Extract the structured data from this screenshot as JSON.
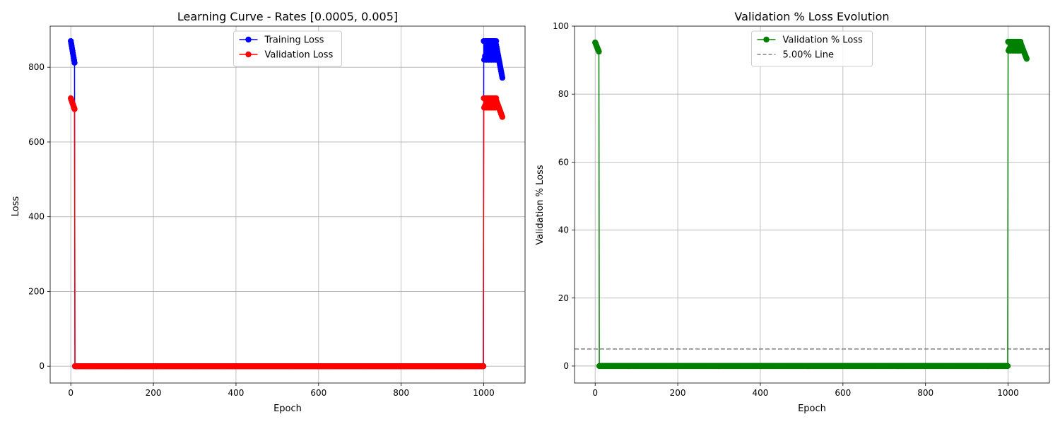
{
  "chart_data": [
    {
      "type": "line",
      "title": "Learning Curve - Rates [0.0005, 0.005]",
      "xlabel": "Epoch",
      "ylabel": "Loss",
      "xlim": [
        -50,
        1100
      ],
      "ylim": [
        -45,
        910
      ],
      "xticks": [
        0,
        200,
        400,
        600,
        800,
        1000
      ],
      "yticks": [
        0,
        200,
        400,
        600,
        800
      ],
      "grid": true,
      "legend_position": "top-center",
      "series": [
        {
          "name": "Training Loss",
          "color": "#0000ff",
          "segments": [
            {
              "x_start": 0,
              "x_end": 9,
              "y_start": 870,
              "y_end": 812
            },
            {
              "x_start": 10,
              "x_end": 999,
              "constant": 0
            },
            {
              "x_start": 1000,
              "x_end": 1030,
              "y_min": 820,
              "y_max": 870,
              "pattern": "oscillating"
            },
            {
              "x_start": 1030,
              "x_end": 1045,
              "y_start": 860,
              "y_end": 772
            }
          ]
        },
        {
          "name": "Validation Loss",
          "color": "#ff0000",
          "segments": [
            {
              "x_start": 0,
              "x_end": 9,
              "y_start": 717,
              "y_end": 688
            },
            {
              "x_start": 10,
              "x_end": 999,
              "constant": 0
            },
            {
              "x_start": 1000,
              "x_end": 1030,
              "y_min": 692,
              "y_max": 717,
              "pattern": "oscillating"
            },
            {
              "x_start": 1030,
              "x_end": 1045,
              "y_start": 712,
              "y_end": 667
            }
          ]
        }
      ]
    },
    {
      "type": "line",
      "title": "Validation % Loss Evolution",
      "xlabel": "Epoch",
      "ylabel": "Validation % Loss",
      "xlim": [
        -50,
        1100
      ],
      "ylim": [
        -5,
        100
      ],
      "xticks": [
        0,
        200,
        400,
        600,
        800,
        1000
      ],
      "yticks": [
        0,
        20,
        40,
        60,
        80,
        100
      ],
      "grid": true,
      "legend_position": "top-center",
      "series": [
        {
          "name": "Validation % Loss",
          "color": "#008000",
          "segments": [
            {
              "x_start": 0,
              "x_end": 9,
              "y_start": 95.2,
              "y_end": 92.5
            },
            {
              "x_start": 10,
              "x_end": 999,
              "constant": 0
            },
            {
              "x_start": 1000,
              "x_end": 1030,
              "y_min": 92.8,
              "y_max": 95.4,
              "pattern": "oscillating"
            },
            {
              "x_start": 1030,
              "x_end": 1045,
              "y_start": 95.0,
              "y_end": 90.4
            }
          ]
        }
      ],
      "reference_line": {
        "name": "5.00% Line",
        "y": 5,
        "color": "#808080",
        "style": "dashed"
      }
    }
  ]
}
